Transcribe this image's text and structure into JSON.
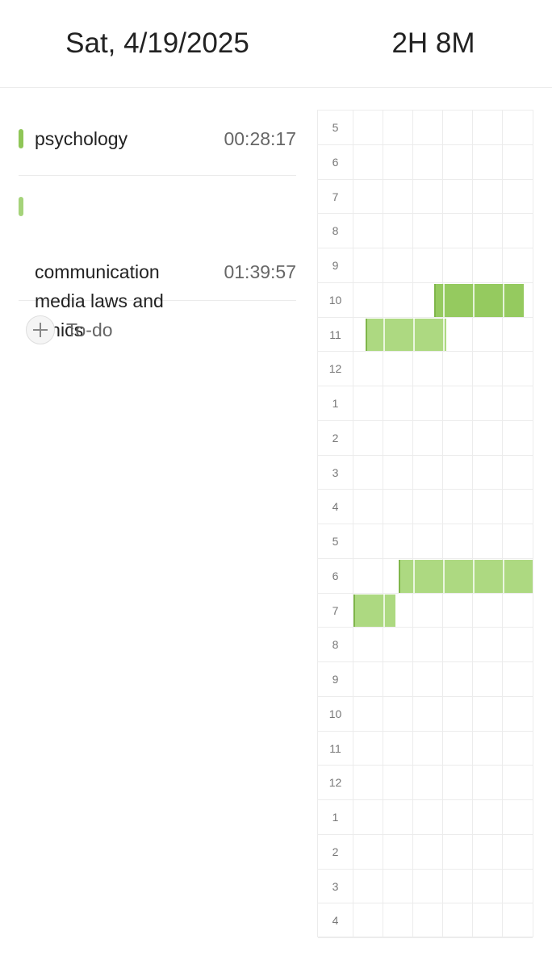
{
  "header": {
    "date": "Sat, 4/19/2025",
    "total_time": "2H 8M"
  },
  "subjects": [
    {
      "name": "psychology",
      "time": "00:28:17",
      "color": "#8fc657"
    },
    {
      "name": "communication media laws and ethics",
      "time": "01:39:57",
      "color": "#a5d37a"
    }
  ],
  "todo": {
    "label": "To-do",
    "icon": "plus-icon"
  },
  "timeline": {
    "hours": [
      "5",
      "6",
      "7",
      "8",
      "9",
      "10",
      "11",
      "12",
      "1",
      "2",
      "3",
      "4",
      "5",
      "6",
      "7",
      "8",
      "9",
      "10",
      "11",
      "12",
      "1",
      "2",
      "3",
      "4"
    ],
    "segments_per_hour": 6,
    "blocks": [
      {
        "subject": "psychology",
        "hour_index": 5,
        "start_minute": 27,
        "end_minute": 57,
        "color": "#95ca5f"
      },
      {
        "subject": "communication media laws and ethics",
        "hour_index": 6,
        "start_minute": 4,
        "end_minute": 31,
        "color": "#add981"
      },
      {
        "subject": "communication media laws and ethics",
        "hour_index": 13,
        "start_minute": 15,
        "end_minute": 60,
        "color": "#add981"
      },
      {
        "subject": "communication media laws and ethics",
        "hour_index": 14,
        "start_minute": 0,
        "end_minute": 14,
        "color": "#add981"
      }
    ]
  }
}
